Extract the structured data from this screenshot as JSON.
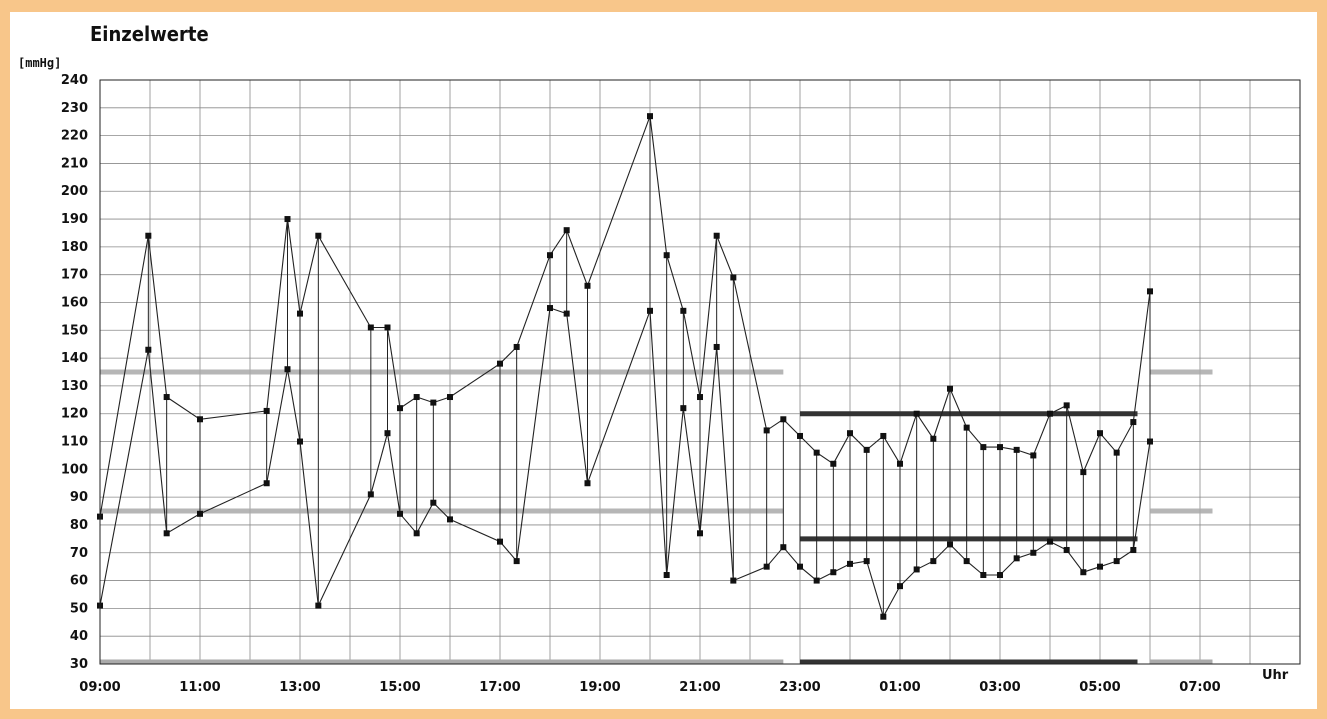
{
  "chart_data": {
    "type": "line",
    "title": "Einzelwerte",
    "ylabel": "[mmHg]",
    "xlabel": "Uhr",
    "ylim": [
      30,
      240
    ],
    "yticks": [
      30,
      40,
      50,
      60,
      70,
      80,
      90,
      100,
      110,
      120,
      130,
      140,
      150,
      160,
      170,
      180,
      190,
      200,
      210,
      220,
      230,
      240
    ],
    "xlim_hours": [
      9,
      33
    ],
    "xticks": [
      "09:00",
      "11:00",
      "13:00",
      "15:00",
      "17:00",
      "19:00",
      "21:00",
      "23:00",
      "01:00",
      "03:00",
      "05:00",
      "07:00"
    ],
    "grid": true,
    "measurement_times": [
      "09:00",
      "09:58",
      "10:20",
      "11:00",
      "12:20",
      "12:45",
      "13:00",
      "13:22",
      "14:25",
      "14:45",
      "15:00",
      "15:20",
      "15:40",
      "16:00",
      "17:00",
      "17:20",
      "18:00",
      "18:20",
      "18:45",
      "20:00",
      "20:20",
      "20:40",
      "21:00",
      "21:20",
      "21:40",
      "22:20",
      "22:40",
      "23:00",
      "23:20",
      "23:40",
      "00:00",
      "00:20",
      "00:40",
      "01:00",
      "01:20",
      "01:40",
      "02:00",
      "02:20",
      "02:40",
      "03:00",
      "03:20",
      "03:40",
      "04:00",
      "04:20",
      "04:40",
      "05:00",
      "05:20",
      "05:40",
      "06:00"
    ],
    "series": [
      {
        "role": "systolic",
        "values": [
          83,
          184,
          126,
          118,
          121,
          190,
          156,
          184,
          151,
          151,
          122,
          126,
          124,
          126,
          138,
          144,
          177,
          186,
          166,
          227,
          177,
          157,
          126,
          184,
          169,
          114,
          118,
          112,
          106,
          102,
          113,
          107,
          112,
          102,
          120,
          111,
          129,
          115,
          108,
          108,
          107,
          105,
          120,
          123,
          99,
          113,
          106,
          117,
          164
        ]
      },
      {
        "role": "diastolic",
        "values": [
          51,
          143,
          77,
          84,
          95,
          136,
          110,
          51,
          91,
          113,
          84,
          77,
          88,
          82,
          74,
          67,
          158,
          156,
          95,
          157,
          62,
          122,
          77,
          144,
          60,
          65,
          72,
          65,
          60,
          63,
          66,
          67,
          47,
          58,
          64,
          67,
          73,
          67,
          62,
          62,
          68,
          70,
          74,
          71,
          63,
          65,
          67,
          71,
          110
        ]
      }
    ],
    "reference_lines": [
      {
        "period": "day",
        "value": 135,
        "color": "#aaaaaa",
        "start": "09:00",
        "end": "22:40"
      },
      {
        "period": "day",
        "value": 85,
        "color": "#aaaaaa",
        "start": "09:00",
        "end": "22:40"
      },
      {
        "period": "night",
        "value": 120,
        "color": "#333333",
        "start": "23:00",
        "end": "05:45"
      },
      {
        "period": "night",
        "value": 75,
        "color": "#333333",
        "start": "23:00",
        "end": "05:45"
      },
      {
        "period": "day",
        "value": 135,
        "color": "#aaaaaa",
        "start": "06:00",
        "end": "07:15"
      },
      {
        "period": "day",
        "value": 85,
        "color": "#aaaaaa",
        "start": "06:00",
        "end": "07:15"
      }
    ],
    "baseline_bands": [
      {
        "period": "day",
        "color": "#aaaaaa",
        "start": "09:00",
        "end": "22:40"
      },
      {
        "period": "night",
        "color": "#333333",
        "start": "23:00",
        "end": "05:45"
      },
      {
        "period": "day",
        "color": "#aaaaaa",
        "start": "06:00",
        "end": "07:15"
      }
    ],
    "colors": {
      "line": "#222222",
      "marker": "#111111",
      "grid": "#8a8a8a",
      "axis": "#222222"
    }
  }
}
